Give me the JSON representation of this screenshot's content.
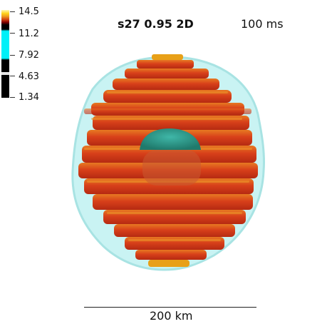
{
  "title": "s27 0.95 2D",
  "time_label": "100 ms",
  "colorbar": {
    "ticks": [
      "14.5",
      "11.2",
      "7.92",
      "4.63",
      "1.34"
    ],
    "colors": [
      "#fff7b0",
      "#ffd21a",
      "#d04010",
      "#000000",
      "#00f0f8"
    ]
  },
  "scale_bar": {
    "label": "200 km"
  },
  "colors": {
    "shock_surface": "#b4eeee",
    "plume": "#d43a14",
    "plume_highlight": "#e8a018",
    "core": "#2a9e8c"
  }
}
